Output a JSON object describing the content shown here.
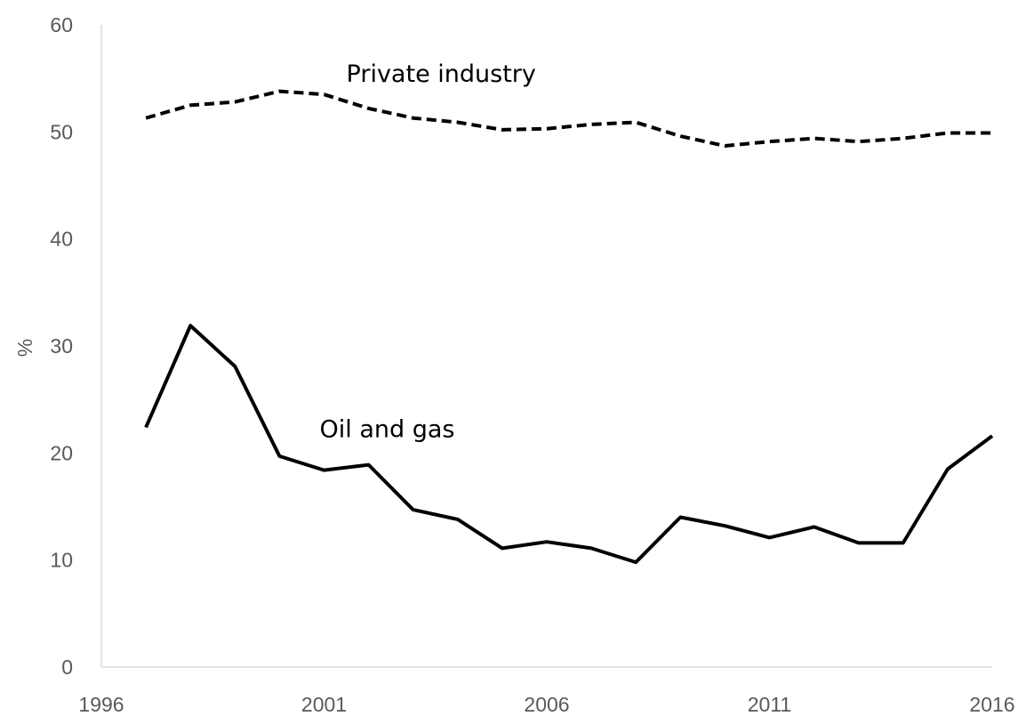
{
  "chart_data": {
    "type": "line",
    "title": "",
    "xlabel": "",
    "ylabel": "%",
    "xlim": [
      1996,
      2016
    ],
    "ylim": [
      0,
      60
    ],
    "x_ticks": [
      1996,
      2001,
      2006,
      2011,
      2016
    ],
    "y_ticks": [
      0,
      10,
      20,
      30,
      40,
      50,
      60
    ],
    "grid": false,
    "legend": "none",
    "x": [
      1997,
      1998,
      1999,
      2000,
      2001,
      2002,
      2003,
      2004,
      2005,
      2006,
      2007,
      2008,
      2009,
      2010,
      2011,
      2012,
      2013,
      2014,
      2015,
      2016
    ],
    "series": [
      {
        "name": "Private industry",
        "style": "dashed",
        "color": "#000000",
        "values": [
          51.3,
          52.5,
          52.8,
          53.8,
          53.5,
          52.2,
          51.3,
          50.9,
          50.2,
          50.3,
          50.7,
          50.9,
          49.6,
          48.7,
          49.1,
          49.4,
          49.1,
          49.4,
          49.9,
          49.9
        ]
      },
      {
        "name": "Oil and gas",
        "style": "solid",
        "color": "#000000",
        "values": [
          22.4,
          31.9,
          28.1,
          19.7,
          18.4,
          18.9,
          14.7,
          13.8,
          11.1,
          11.7,
          11.1,
          9.8,
          14.0,
          13.2,
          12.1,
          13.1,
          11.6,
          11.6,
          18.5,
          21.6
        ]
      }
    ],
    "annotations": [
      {
        "text": "Private industry",
        "x": 2001.5,
        "y": 54.7
      },
      {
        "text": "Oil and gas",
        "x": 2000.9,
        "y": 21.5
      }
    ]
  }
}
